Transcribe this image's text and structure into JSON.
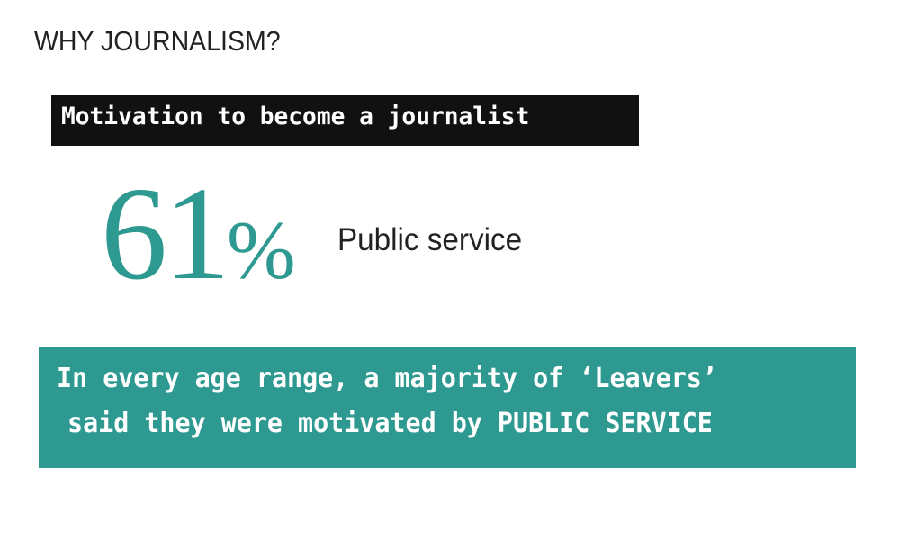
{
  "header": {
    "title": "WHY JOURNALISM?"
  },
  "label": {
    "text": "Motivation to become a journalist"
  },
  "stat": {
    "value": "61",
    "unit": "%",
    "label": "Public service"
  },
  "banner": {
    "line1": "In every age range, a majority of ‘Leavers’",
    "line2": "said they were motivated by PUBLIC SERVICE"
  },
  "colors": {
    "accent": "#2e9990",
    "label_bg": "#111111",
    "text": "#222222"
  }
}
